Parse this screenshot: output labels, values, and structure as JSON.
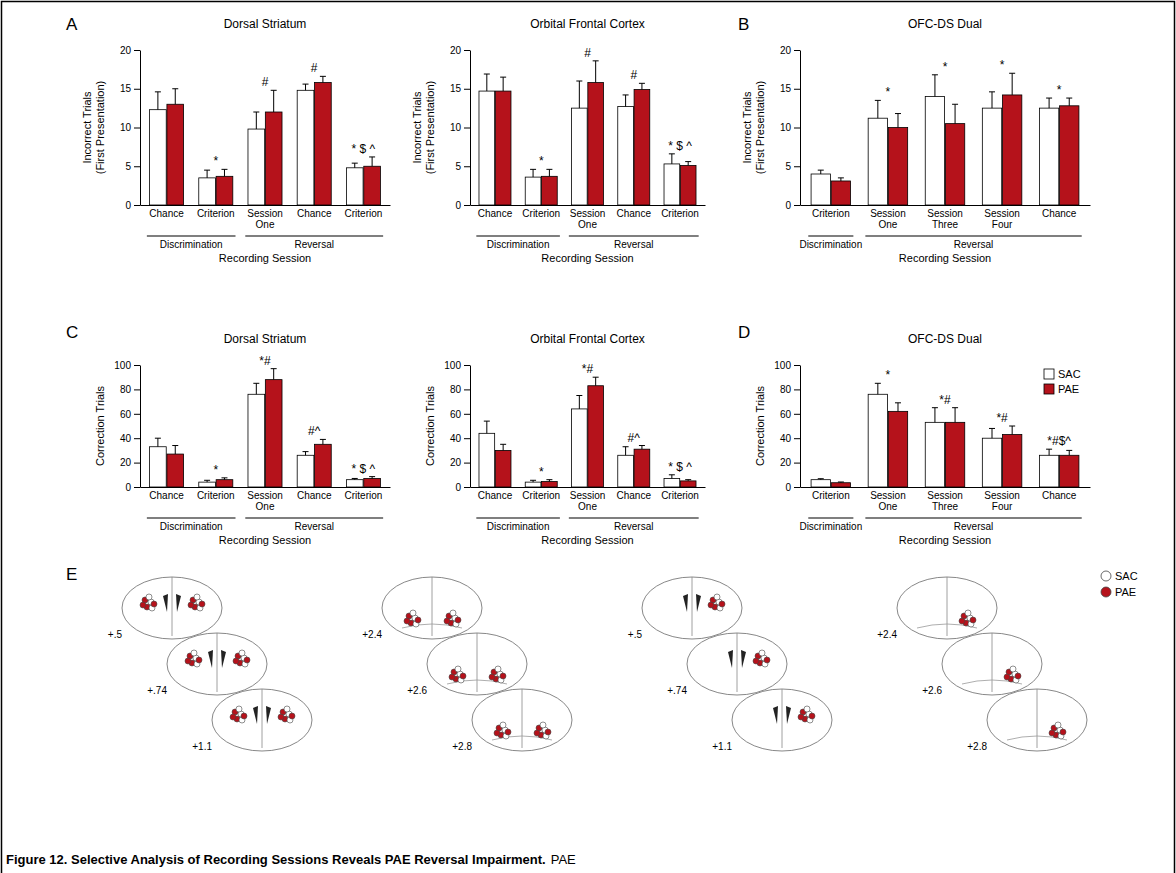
{
  "figure": {
    "panel_letters": [
      "A",
      "B",
      "C",
      "D",
      "E"
    ],
    "caption_title": "Figure 12. Selective Analysis of Recording Sessions Reveals PAE Reversal Impairment.",
    "caption_text": "PAE",
    "sections": [
      [
        "+.5",
        "+.74",
        "+1.1"
      ],
      [
        "+2.4",
        "+2.6",
        "+2.8"
      ],
      [
        "+.5",
        "+.74",
        "+1.1"
      ],
      [
        "+2.4",
        "+2.6",
        "+2.8"
      ]
    ],
    "legend": [
      {
        "name": "SAC",
        "color": "#ffffff"
      },
      {
        "name": "PAE",
        "color": "#b5121b"
      }
    ]
  },
  "chart_data": [
    {
      "type": "bar",
      "title": "Dorsal Striatum",
      "y_label": [
        "Incorrect Trials",
        "(First Presentation)"
      ],
      "x_label": "Recording Session",
      "categories": [
        "Chance",
        "Criterion",
        "Session One",
        "Chance",
        "Criterion"
      ],
      "category_groups": [
        "Discrimination",
        "Discrimination",
        "Reversal",
        "Reversal",
        "Reversal"
      ],
      "series": [
        {
          "color": "#ffffff",
          "values": [
            12.3,
            3.5,
            9.8,
            14.8,
            4.8
          ],
          "errors": [
            2.3,
            1.0,
            2.2,
            0.8,
            0.6
          ]
        },
        {
          "color": "#b5121b",
          "values": [
            13.0,
            3.7,
            12.0,
            15.8,
            5.0
          ],
          "errors": [
            2.0,
            0.9,
            2.8,
            0.8,
            1.2
          ]
        }
      ],
      "annotations": [
        null,
        "*",
        "#",
        "#",
        "* $ ^"
      ],
      "ylim": [
        0,
        20
      ],
      "yticks": [
        0,
        5,
        10,
        15,
        20
      ]
    },
    {
      "type": "bar",
      "title": "Orbital Frontal Cortex",
      "y_label": [
        "Incorrect Trials",
        "(First Presentation)"
      ],
      "x_label": "Recording Session",
      "categories": [
        "Chance",
        "Criterion",
        "Session One",
        "Chance",
        "Criterion"
      ],
      "category_groups": [
        "Discrimination",
        "Discrimination",
        "Reversal",
        "Reversal",
        "Reversal"
      ],
      "series": [
        {
          "color": "#ffffff",
          "values": [
            14.7,
            3.6,
            12.5,
            12.7,
            5.3
          ],
          "errors": [
            2.2,
            1.0,
            3.5,
            1.5,
            1.3
          ]
        },
        {
          "color": "#b5121b",
          "values": [
            14.7,
            3.7,
            15.8,
            14.9,
            5.1
          ],
          "errors": [
            1.8,
            0.9,
            2.8,
            0.8,
            0.5
          ]
        }
      ],
      "annotations": [
        null,
        "*",
        "#",
        "#",
        "* $ ^"
      ],
      "ylim": [
        0,
        20
      ],
      "yticks": [
        0,
        5,
        10,
        15,
        20
      ]
    },
    {
      "type": "bar",
      "title": "OFC-DS Dual",
      "y_label": [
        "Incorrect Trials",
        "(First Presentation)"
      ],
      "x_label": "Recording Session",
      "categories": [
        "Criterion",
        "Session One",
        "Session Three",
        "Session Four",
        "Chance"
      ],
      "category_groups": [
        "Discrimination",
        "Reversal",
        "Reversal",
        "Reversal",
        "Reversal"
      ],
      "series": [
        {
          "color": "#ffffff",
          "values": [
            4.0,
            11.2,
            14.0,
            12.5,
            12.5
          ],
          "errors": [
            0.5,
            2.3,
            2.8,
            2.1,
            1.3
          ]
        },
        {
          "color": "#b5121b",
          "values": [
            3.1,
            10.0,
            10.5,
            14.2,
            12.8
          ],
          "errors": [
            0.4,
            1.8,
            2.5,
            2.8,
            1.0
          ]
        }
      ],
      "annotations": [
        null,
        "*",
        "*",
        "*",
        "*"
      ],
      "ylim": [
        0,
        20
      ],
      "yticks": [
        0,
        5,
        10,
        15,
        20
      ]
    },
    {
      "type": "bar",
      "title": "Dorsal Striatum",
      "y_label": "Correction Trials",
      "x_label": "Recording Session",
      "categories": [
        "Chance",
        "Criterion",
        "Session One",
        "Chance",
        "Criterion"
      ],
      "category_groups": [
        "Discrimination",
        "Discrimination",
        "Reversal",
        "Reversal",
        "Reversal"
      ],
      "series": [
        {
          "color": "#ffffff",
          "values": [
            33,
            4,
            76,
            26,
            6
          ],
          "errors": [
            7,
            1.5,
            9,
            3,
            1
          ]
        },
        {
          "color": "#b5121b",
          "values": [
            27,
            6,
            88,
            35,
            7
          ],
          "errors": [
            7,
            1.5,
            9,
            4,
            1.5
          ]
        }
      ],
      "annotations": [
        null,
        "*",
        "*#",
        "#^",
        "* $ ^"
      ],
      "ylim": [
        0,
        100
      ],
      "yticks": [
        0,
        20,
        40,
        60,
        80,
        100
      ]
    },
    {
      "type": "bar",
      "title": "Orbital Frontal Cortex",
      "y_label": "Correction Trials",
      "x_label": "Recording Session",
      "categories": [
        "Chance",
        "Criterion",
        "Session One",
        "Chance",
        "Criterion"
      ],
      "category_groups": [
        "Discrimination",
        "Discrimination",
        "Reversal",
        "Reversal",
        "Reversal"
      ],
      "series": [
        {
          "color": "#ffffff",
          "values": [
            44,
            4,
            64,
            26,
            7
          ],
          "errors": [
            10,
            1.5,
            11,
            7,
            3
          ]
        },
        {
          "color": "#b5121b",
          "values": [
            30,
            4.5,
            83,
            31,
            5
          ],
          "errors": [
            5,
            1.5,
            7,
            3,
            1
          ]
        }
      ],
      "annotations": [
        null,
        "*",
        "*#",
        "#^",
        "* $ ^"
      ],
      "ylim": [
        0,
        100
      ],
      "yticks": [
        0,
        20,
        40,
        60,
        80,
        100
      ]
    },
    {
      "type": "bar",
      "title": "OFC-DS Dual",
      "y_label": "Correction Trials",
      "x_label": "Recording Session",
      "categories": [
        "Criterion",
        "Session One",
        "Session Three",
        "Session Four",
        "Chance"
      ],
      "category_groups": [
        "Discrimination",
        "Reversal",
        "Reversal",
        "Reversal",
        "Reversal"
      ],
      "series": [
        {
          "name": "SAC",
          "color": "#ffffff",
          "values": [
            6,
            76,
            53,
            40,
            26
          ],
          "errors": [
            0.8,
            9,
            12,
            8,
            5
          ]
        },
        {
          "name": "PAE",
          "color": "#b5121b",
          "values": [
            3.5,
            62,
            53,
            43,
            26
          ],
          "errors": [
            0.6,
            7,
            12,
            7,
            4
          ]
        }
      ],
      "annotations": [
        null,
        "*",
        "*#",
        "*#",
        "*#$^"
      ],
      "legend": "top-right",
      "ylim": [
        0,
        100
      ],
      "yticks": [
        0,
        20,
        40,
        60,
        80,
        100
      ]
    }
  ]
}
